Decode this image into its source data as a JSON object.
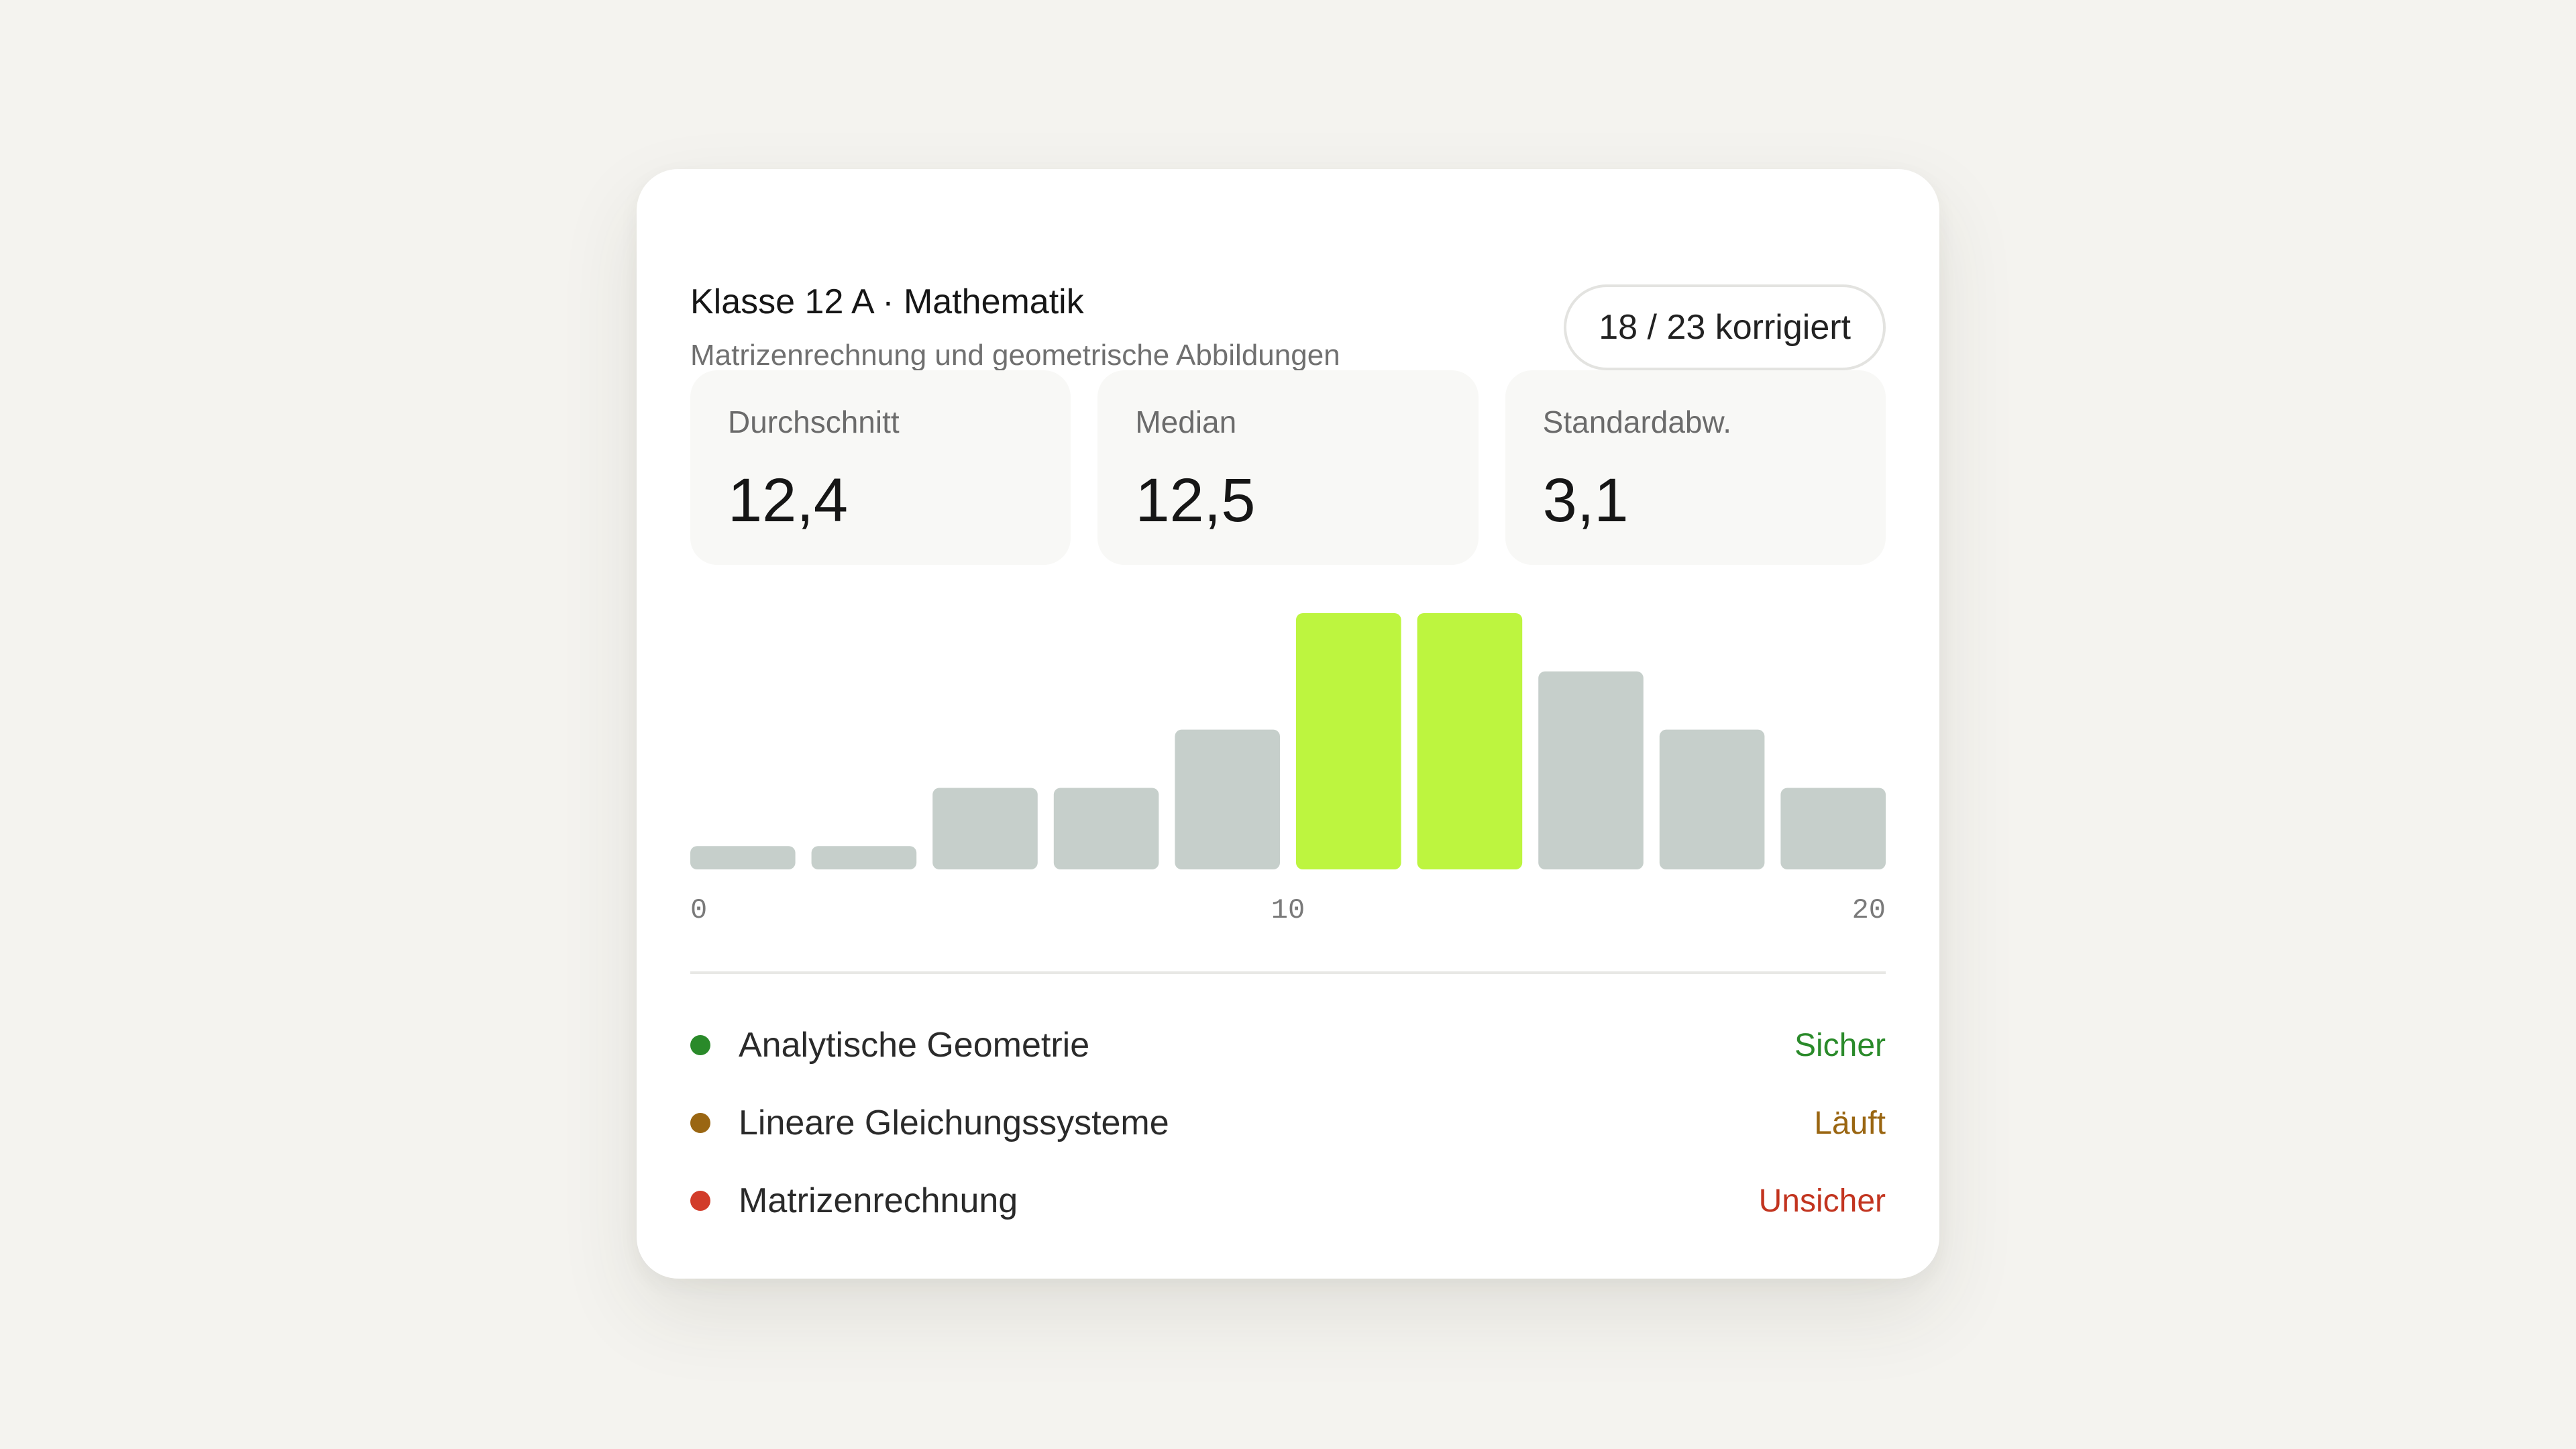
{
  "card": {
    "title": "Klasse 12 A · Mathematik",
    "subtitle": "Matrizenrechnung und geometrische Abbildungen",
    "badge": "18 / 23 korrigiert"
  },
  "stats": [
    {
      "label": "Durchschnitt",
      "value": "12,4"
    },
    {
      "label": "Median",
      "value": "12,5"
    },
    {
      "label": "Standardabw.",
      "value": "3,1"
    }
  ],
  "chart_data": {
    "type": "bar",
    "categories": [
      "0-2",
      "2-4",
      "4-6",
      "6-8",
      "8-10",
      "10-12",
      "12-14",
      "14-16",
      "16-18",
      "18-20"
    ],
    "values": [
      0.4,
      0.4,
      1.4,
      1.4,
      2.4,
      4.4,
      4.4,
      3.4,
      2.4,
      1.4
    ],
    "highlight": [
      false,
      false,
      false,
      false,
      false,
      true,
      true,
      false,
      false,
      false
    ],
    "xticks": [
      {
        "value": 0,
        "label": "0"
      },
      {
        "value": 10,
        "label": "10"
      },
      {
        "value": 20,
        "label": "20"
      }
    ],
    "xlim": [
      0,
      20
    ],
    "ylim": [
      0,
      4.4
    ],
    "title": "",
    "xlabel": "",
    "ylabel": "",
    "grid": false,
    "colors": {
      "default": "#c6cfcb",
      "highlight": "#bdf53f"
    }
  },
  "topics": [
    {
      "name": "Analytische Geometrie",
      "status": "Sicher",
      "dot_color": "#2a8a2a",
      "status_color": "#2a8a2a"
    },
    {
      "name": "Lineare Gleichungssysteme",
      "status": "Läuft",
      "dot_color": "#9a6612",
      "status_color": "#9a6612"
    },
    {
      "name": "Matrizenrechnung",
      "status": "Unsicher",
      "dot_color": "#d23c2a",
      "status_color": "#c2341f"
    }
  ]
}
